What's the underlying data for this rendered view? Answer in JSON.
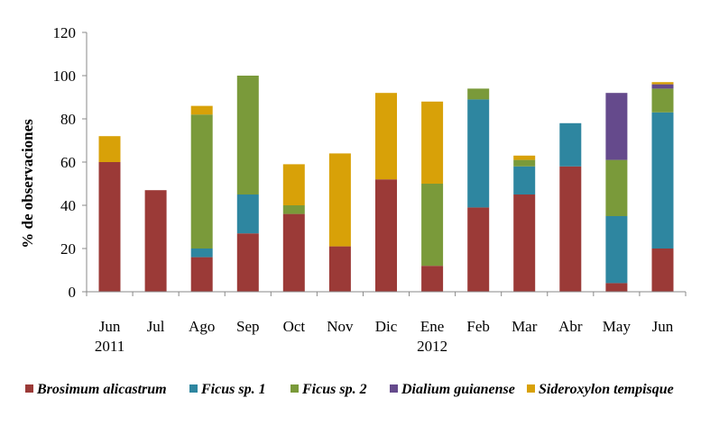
{
  "chart_data": {
    "type": "bar",
    "stacked": true,
    "title": "",
    "xlabel": "",
    "ylabel": "% de observaciones",
    "ylim": [
      0,
      120
    ],
    "yticks": [
      0,
      20,
      40,
      60,
      80,
      100,
      120
    ],
    "grid": false,
    "legend_position": "bottom",
    "categories": [
      {
        "label": "Jun",
        "sublabel": "2011"
      },
      {
        "label": "Jul",
        "sublabel": ""
      },
      {
        "label": "Ago",
        "sublabel": ""
      },
      {
        "label": "Sep",
        "sublabel": ""
      },
      {
        "label": "Oct",
        "sublabel": ""
      },
      {
        "label": "Nov",
        "sublabel": ""
      },
      {
        "label": "Dic",
        "sublabel": ""
      },
      {
        "label": "Ene",
        "sublabel": "2012"
      },
      {
        "label": "Feb",
        "sublabel": ""
      },
      {
        "label": "Mar",
        "sublabel": ""
      },
      {
        "label": "Abr",
        "sublabel": ""
      },
      {
        "label": "May",
        "sublabel": ""
      },
      {
        "label": "Jun",
        "sublabel": ""
      }
    ],
    "series": [
      {
        "name": "Brosimum alicastrum",
        "color": "#9b3a37",
        "values": [
          60,
          47,
          16,
          27,
          36,
          21,
          52,
          12,
          39,
          45,
          58,
          4,
          20
        ]
      },
      {
        "name": "Ficus sp. 1",
        "color": "#2e86a0",
        "values": [
          0,
          0,
          4,
          18,
          0,
          0,
          0,
          0,
          50,
          13,
          20,
          31,
          63
        ]
      },
      {
        "name": "Ficus sp. 2",
        "color": "#7a9a3a",
        "values": [
          0,
          0,
          62,
          55,
          4,
          0,
          0,
          38,
          5,
          3,
          0,
          26,
          11
        ]
      },
      {
        "name": "Dialium guianense",
        "color": "#654a8c",
        "values": [
          0,
          0,
          0,
          0,
          0,
          0,
          0,
          0,
          0,
          0,
          0,
          31,
          2
        ]
      },
      {
        "name": "Sideroxylon tempisque",
        "color": "#d8a108",
        "values": [
          12,
          0,
          4,
          0,
          19,
          43,
          40,
          38,
          0,
          2,
          0,
          0,
          1
        ]
      }
    ]
  }
}
